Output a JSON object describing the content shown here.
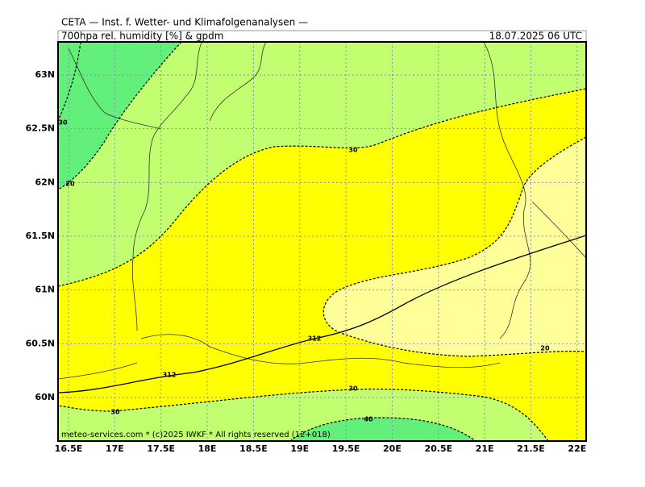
{
  "header": {
    "title": "CETA — Inst. f. Wetter- und Klimafolgenanalysen —",
    "subtitle": "700hpa rel. humidity [%] & gpdm",
    "valid_time": "18.07.2025 06 UTC"
  },
  "y_labels": [
    "63N",
    "62.5N",
    "62N",
    "61.5N",
    "61N",
    "60.5N",
    "60N"
  ],
  "x_labels": [
    "16.5E",
    "17E",
    "17.5E",
    "18E",
    "18.5E",
    "19E",
    "19.5E",
    "20E",
    "20.5E",
    "21E",
    "21.5E",
    "22E"
  ],
  "contour_labels": [
    "30",
    "30",
    "20",
    "312",
    "312",
    "20",
    "30",
    "30",
    "40"
  ],
  "footer": "meteo-services.com * (c)2025 IWKF * All rights reserved (12+018)"
}
